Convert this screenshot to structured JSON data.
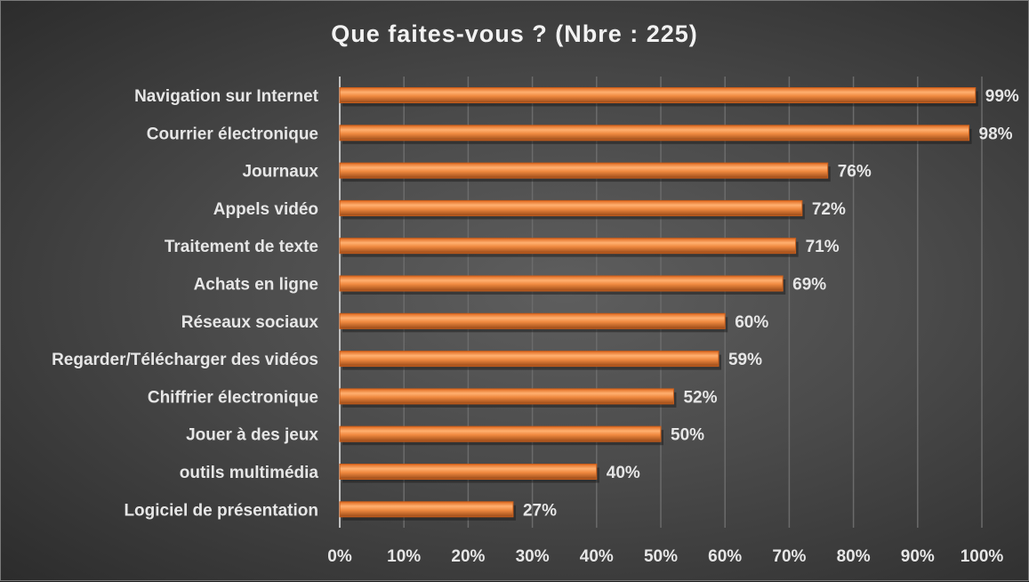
{
  "chart_data": {
    "type": "bar",
    "orientation": "horizontal",
    "title": "Que faites-vous ? (Nbre : 225)",
    "categories": [
      "Navigation sur Internet",
      "Courrier électronique",
      "Journaux",
      "Appels vidéo",
      "Traitement de texte",
      "Achats en ligne",
      "Réseaux sociaux",
      "Regarder/Télécharger des vidéos",
      "Chiffrier électronique",
      "Jouer à des jeux",
      "outils multimédia",
      "Logiciel de présentation"
    ],
    "values": [
      99,
      98,
      76,
      72,
      71,
      69,
      60,
      59,
      52,
      50,
      40,
      27
    ],
    "data_labels": [
      "99%",
      "98%",
      "76%",
      "72%",
      "71%",
      "69%",
      "60%",
      "59%",
      "52%",
      "50%",
      "40%",
      "27%"
    ],
    "xlim": [
      0,
      100
    ],
    "x_ticks": [
      "0%",
      "10%",
      "20%",
      "30%",
      "40%",
      "50%",
      "60%",
      "70%",
      "80%",
      "90%",
      "100%"
    ],
    "grid": true,
    "bar_color": "#f0843a",
    "xlabel": "",
    "ylabel": ""
  }
}
